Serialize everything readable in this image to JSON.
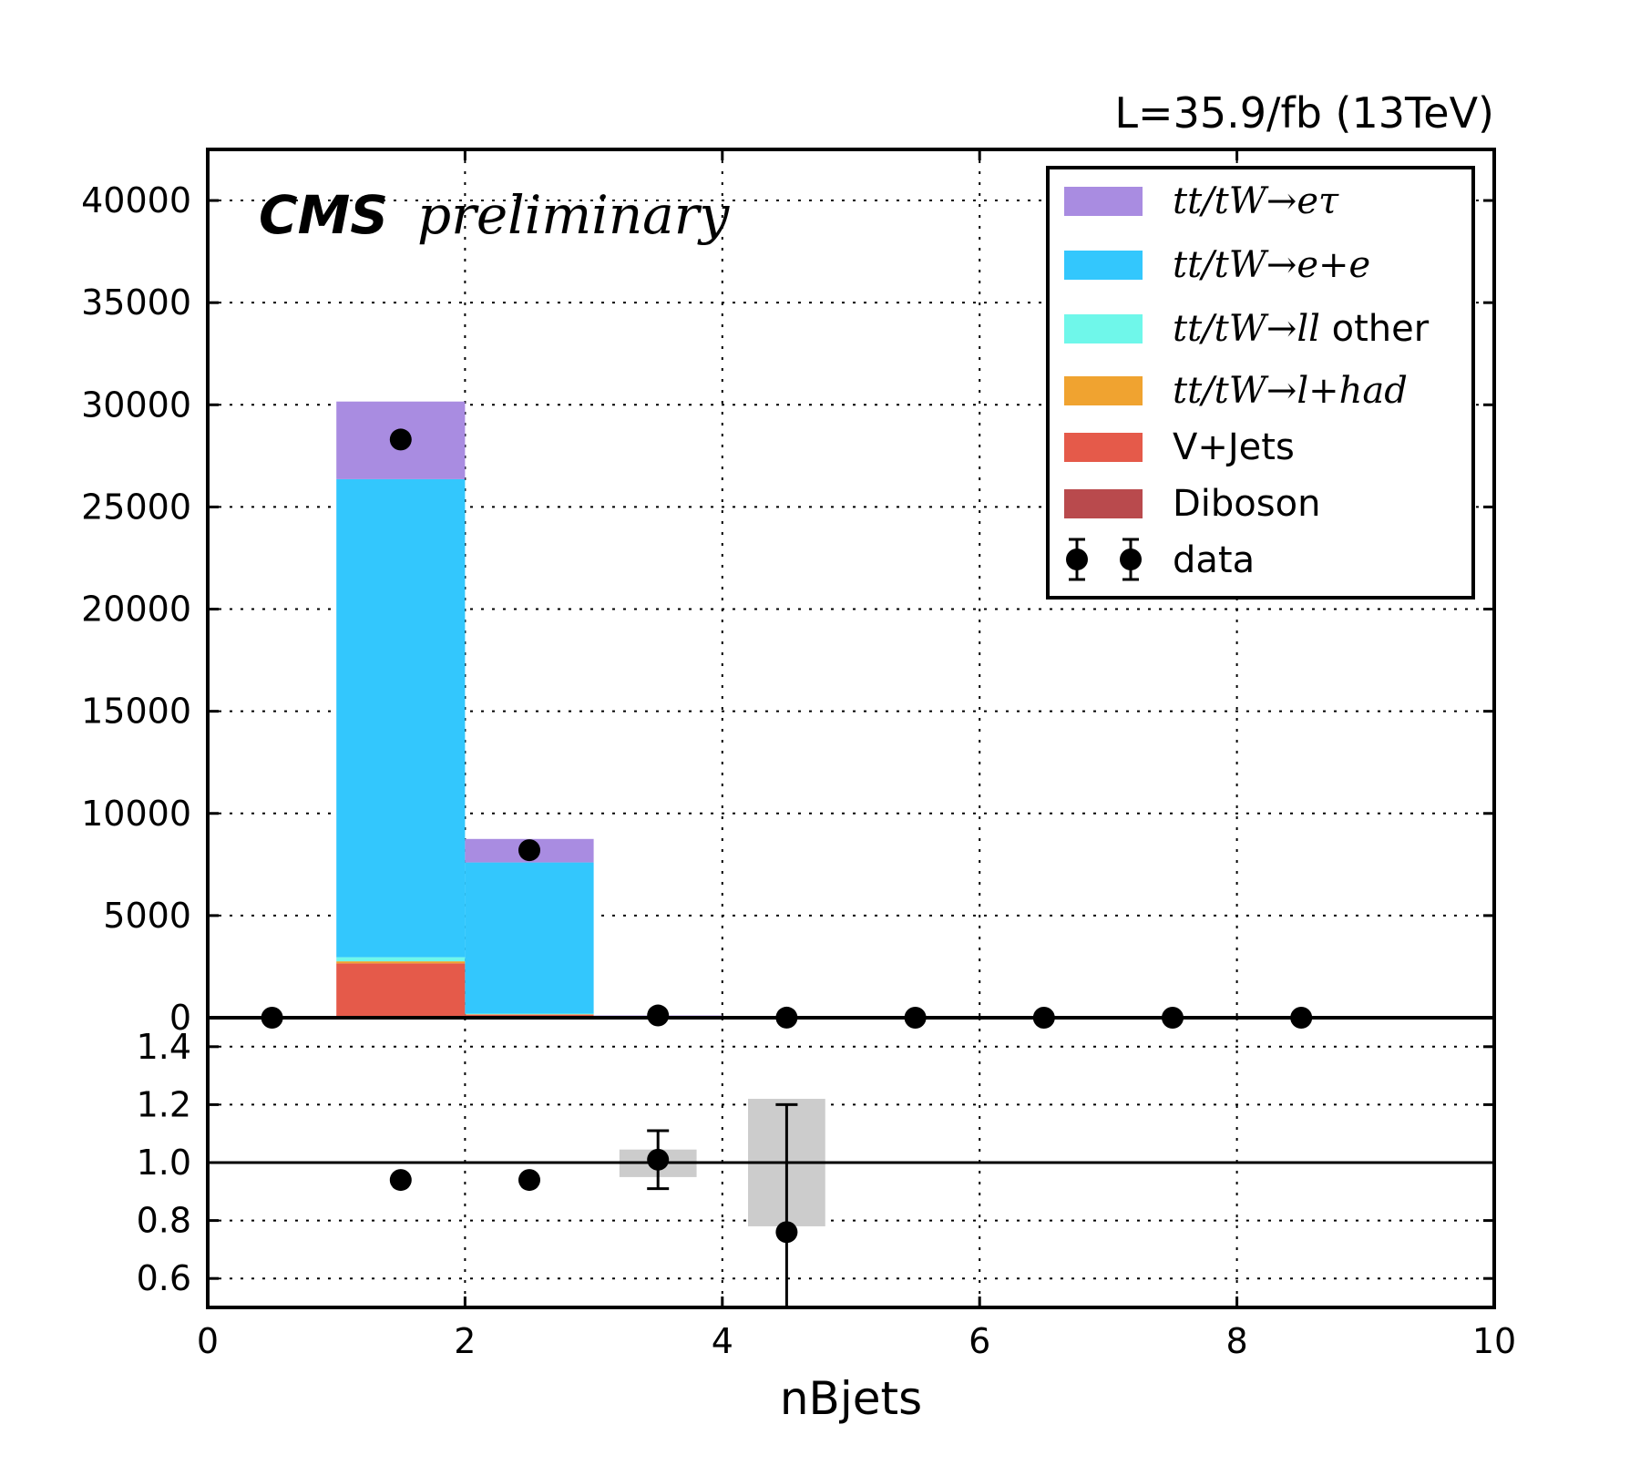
{
  "header": {
    "luminosity": "L=35.9/fb (13TeV)",
    "experiment": "CMS",
    "status": "preliminary"
  },
  "chart_data": {
    "type": "bar",
    "stacked": true,
    "xlabel": "nBjets",
    "xlim": [
      0,
      10
    ],
    "xticks": [
      0,
      2,
      4,
      6,
      8,
      10
    ],
    "bin_edges": [
      0,
      1,
      2,
      3,
      4,
      5,
      6,
      7,
      8,
      9
    ],
    "grid": true,
    "legend_position": "top-right",
    "main_panel": {
      "ylim": [
        0,
        42500
      ],
      "yticks": [
        0,
        5000,
        10000,
        15000,
        20000,
        25000,
        30000,
        35000,
        40000
      ],
      "series": [
        {
          "name": "Diboson",
          "color": "#b94a4d",
          "values": [
            0,
            60,
            20,
            0,
            0,
            0,
            0,
            0,
            0
          ]
        },
        {
          "name": "V+Jets",
          "color": "#e55a4a",
          "values": [
            0,
            2600,
            130,
            10,
            0,
            0,
            0,
            0,
            0
          ]
        },
        {
          "name": "tt/tW→l+had",
          "color": "#f0a330",
          "values": [
            0,
            100,
            20,
            0,
            0,
            0,
            0,
            0,
            0
          ]
        },
        {
          "name": "tt/tW→ll other",
          "color": "#6ff7ea",
          "values": [
            0,
            200,
            30,
            0,
            0,
            0,
            0,
            0,
            0
          ]
        },
        {
          "name": "tt/tW→e+e",
          "color": "#33c7fd",
          "values": [
            0,
            23400,
            7400,
            80,
            5,
            0,
            0,
            0,
            0
          ]
        },
        {
          "name": "tt/tW→eτ",
          "color": "#a98ce1",
          "values": [
            0,
            3800,
            1150,
            20,
            0,
            0,
            0,
            0,
            0
          ]
        }
      ],
      "data": {
        "name": "data",
        "x": [
          0.5,
          1.5,
          2.5,
          3.5,
          4.5,
          5.5,
          6.5,
          7.5,
          8.5
        ],
        "y": [
          0,
          28300,
          8200,
          110,
          4,
          0,
          0,
          0,
          0
        ],
        "yerr": [
          0,
          168,
          91,
          10,
          2,
          0,
          0,
          0,
          0
        ]
      }
    },
    "ratio_panel": {
      "ylim": [
        0.5,
        1.5
      ],
      "yticks": [
        0.6,
        0.8,
        1.0,
        1.2,
        1.4
      ],
      "ytick_labels": [
        "0.6",
        "0.8",
        "1.0",
        "1.2",
        "1.4"
      ],
      "reference": 1.0,
      "points": [
        {
          "x": 1.5,
          "y": 0.94,
          "err": 0.005
        },
        {
          "x": 2.5,
          "y": 0.94,
          "err": 0.01
        },
        {
          "x": 3.5,
          "y": 1.01,
          "err": 0.1
        },
        {
          "x": 4.5,
          "y": 0.76,
          "err": 0.44
        }
      ],
      "uncertainty_bands": [
        {
          "x0": 3.2,
          "x1": 3.8,
          "low": 0.95,
          "high": 1.045
        },
        {
          "x0": 4.2,
          "x1": 4.8,
          "low": 0.78,
          "high": 1.22
        }
      ]
    }
  }
}
